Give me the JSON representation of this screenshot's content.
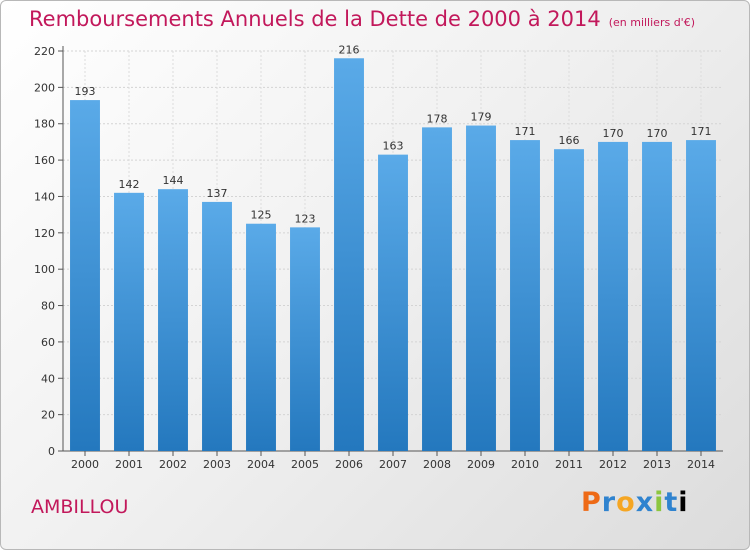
{
  "header": {
    "title": "Remboursements Annuels de la Dette de 2000 à 2014",
    "unit": "(en milliers d'€)"
  },
  "commune": "AMBILLOU",
  "logo": {
    "letters": [
      "P",
      "r",
      "o",
      "x",
      "i",
      "t",
      "i"
    ]
  },
  "chart_data": {
    "type": "bar",
    "title": "Remboursements Annuels de la Dette de 2000 à 2014",
    "subtitle": "(en milliers d'€)",
    "categories": [
      "2000",
      "2001",
      "2002",
      "2003",
      "2004",
      "2005",
      "2006",
      "2007",
      "2008",
      "2009",
      "2010",
      "2011",
      "2012",
      "2013",
      "2014"
    ],
    "values": [
      193,
      142,
      144,
      137,
      125,
      123,
      216,
      163,
      178,
      179,
      171,
      166,
      170,
      170,
      171
    ],
    "yticks": [
      0,
      20,
      40,
      60,
      80,
      100,
      120,
      140,
      160,
      180,
      200,
      220
    ],
    "ylim": [
      0,
      220
    ],
    "grid": true,
    "bar_color_top": "#5aaae8",
    "bar_color_bottom": "#2478be"
  }
}
